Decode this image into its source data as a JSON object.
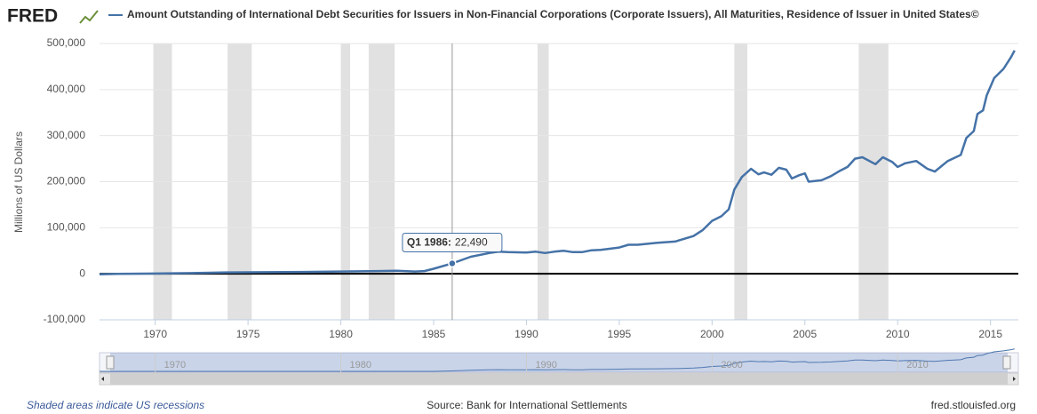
{
  "chart_data": {
    "type": "line",
    "logo": "FRED",
    "title": "Amount Outstanding of International Debt Securities for Issuers in Non-Financial Corporations (Corporate Issuers), All Maturities, Residence of Issuer in United States©",
    "y_label": "Millions of US Dollars",
    "note": "Shaded areas indicate US recessions",
    "source": "Source: Bank for International Settlements",
    "site": "fred.stlouisfed.org",
    "x": [
      1967,
      1968,
      1970,
      1972,
      1974,
      1976,
      1978,
      1980,
      1982,
      1983,
      1984,
      1984.5,
      1985,
      1986,
      1987,
      1988,
      1988.5,
      1989,
      1990,
      1990.5,
      1991,
      1991.5,
      1992,
      1992.5,
      1993,
      1993.5,
      1994,
      1995,
      1995.5,
      1996,
      1997,
      1998,
      1998.5,
      1999,
      1999.5,
      2000,
      2000.5,
      2000.9,
      2001.2,
      2001.6,
      2002.1,
      2002.5,
      2002.8,
      2003.2,
      2003.6,
      2004,
      2004.3,
      2004.7,
      2005,
      2005.2,
      2005.9,
      2006.4,
      2006.9,
      2007.3,
      2007.7,
      2008.1,
      2008.8,
      2009.2,
      2009.7,
      2010,
      2010.4,
      2011,
      2011.6,
      2012,
      2012.7,
      2013.4,
      2013.7,
      2014.1,
      2014.3,
      2014.6,
      2014.8,
      2015.2,
      2015.7,
      2016.1,
      2016.3
    ],
    "series": [
      {
        "name": "Amount Outstanding of International Debt Securities for Issuers in Non-Financial Corporations (Corporate Issuers), All Maturities, Residence of Issuer in United States©",
        "color": "#4572a7",
        "values": [
          -1000,
          0,
          500,
          1500,
          3000,
          3500,
          4000,
          5000,
          6000,
          6500,
          5000,
          6000,
          11000,
          22490,
          37000,
          45000,
          48000,
          47000,
          46000,
          48000,
          45000,
          48000,
          50000,
          47000,
          47000,
          51000,
          52000,
          57000,
          63000,
          63000,
          67000,
          70000,
          76000,
          82000,
          95000,
          115000,
          125000,
          140000,
          183000,
          210000,
          228000,
          216000,
          220000,
          215000,
          230000,
          226000,
          207000,
          214000,
          218000,
          200000,
          203000,
          212000,
          224000,
          232000,
          250000,
          253000,
          238000,
          253000,
          243000,
          232000,
          240000,
          245000,
          228000,
          222000,
          245000,
          258000,
          295000,
          310000,
          347000,
          355000,
          388000,
          425000,
          445000,
          470000,
          485000
        ]
      }
    ],
    "recessions": [
      [
        1969.9,
        1970.9
      ],
      [
        1973.9,
        1975.2
      ],
      [
        1980.0,
        1980.5
      ],
      [
        1981.5,
        1982.9
      ],
      [
        1990.6,
        1991.2
      ],
      [
        2001.2,
        2001.9
      ],
      [
        2007.9,
        2009.5
      ]
    ],
    "tooltip": {
      "label": "Q1 1986:",
      "x": 1986,
      "value": 22490,
      "value_label": "22,490"
    },
    "xlim": [
      1967,
      2016.5
    ],
    "ylim": [
      -100000,
      500000
    ],
    "xticks": [
      1970,
      1975,
      1980,
      1985,
      1990,
      1995,
      2000,
      2005,
      2010,
      2015
    ],
    "yticks": [
      {
        "value": -100000,
        "label": "-100,000"
      },
      {
        "value": 0,
        "label": "0"
      },
      {
        "value": 100000,
        "label": "100,000"
      },
      {
        "value": 200000,
        "label": "200,000"
      },
      {
        "value": 300000,
        "label": "300,000"
      },
      {
        "value": 400000,
        "label": "400,000"
      },
      {
        "value": 500000,
        "label": "500,000"
      }
    ],
    "navigator_xticks": [
      1970,
      1980,
      1990,
      2000,
      2010
    ],
    "grid": true
  }
}
